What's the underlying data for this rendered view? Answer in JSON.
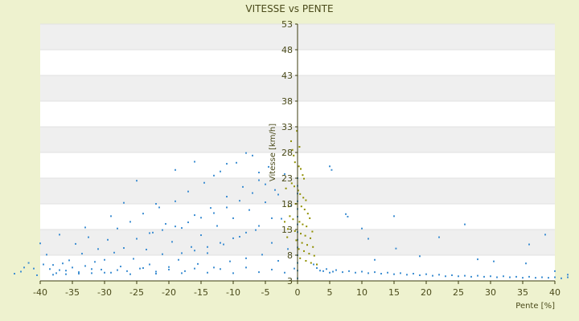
{
  "chart_data": {
    "type": "scatter",
    "title": "VITESSE vs PENTE",
    "xlabel": "Pente [%]",
    "ylabel": "Vitesse [km/h]",
    "xlim": [
      -40,
      40
    ],
    "ylim": [
      3,
      53
    ],
    "x_ticks": [
      -40,
      -35,
      -30,
      -25,
      -20,
      -15,
      -10,
      -5,
      0,
      5,
      10,
      15,
      20,
      25,
      30,
      35,
      40
    ],
    "y_ticks": [
      3,
      8,
      13,
      18,
      23,
      28,
      33,
      38,
      43,
      48,
      53
    ],
    "y_tick_labels": [
      "3",
      "8",
      "13",
      "18",
      "23",
      "28",
      "33",
      "38",
      "43",
      "48",
      "53"
    ],
    "y_axis_position": "x=0",
    "banded_background": true,
    "colors": {
      "background": "#eef2cf",
      "band_light": "#ffffff",
      "band_dark": "#efefef",
      "axis": "#3b3b0e"
    },
    "series": [
      {
        "color": "#3f8fd2",
        "points": [
          [
            -44.0,
            4.4
          ],
          [
            -43.0,
            4.8
          ],
          [
            -42.5,
            5.6
          ],
          [
            -41.8,
            6.5
          ],
          [
            -41.0,
            5.4
          ],
          [
            -40.5,
            4.1
          ],
          [
            -40.0,
            10.3
          ],
          [
            -39.5,
            6.2
          ],
          [
            -39.0,
            8.1
          ],
          [
            -38.5,
            5.3
          ],
          [
            -38.0,
            6.1
          ],
          [
            -37.5,
            4.5
          ],
          [
            -37.0,
            5.1
          ],
          [
            -36.5,
            6.4
          ],
          [
            -36.0,
            4.3
          ],
          [
            -35.5,
            7.0
          ],
          [
            -35.0,
            5.6
          ],
          [
            -34.5,
            10.2
          ],
          [
            -34.0,
            4.7
          ],
          [
            -33.5,
            8.3
          ],
          [
            -33.0,
            5.9
          ],
          [
            -32.5,
            11.5
          ],
          [
            -32.0,
            4.5
          ],
          [
            -31.5,
            6.7
          ],
          [
            -31.0,
            9.2
          ],
          [
            -30.5,
            5.2
          ],
          [
            -30.0,
            7.1
          ],
          [
            -29.5,
            11.0
          ],
          [
            -29.0,
            4.6
          ],
          [
            -28.5,
            8.5
          ],
          [
            -28.0,
            13.2
          ],
          [
            -27.5,
            5.8
          ],
          [
            -27.0,
            9.4
          ],
          [
            -26.5,
            4.9
          ],
          [
            -26.0,
            14.5
          ],
          [
            -25.5,
            7.3
          ],
          [
            -25.0,
            11.2
          ],
          [
            -24.5,
            5.4
          ],
          [
            -24.0,
            16.1
          ],
          [
            -23.5,
            9.1
          ],
          [
            -23.0,
            6.2
          ],
          [
            -22.5,
            12.4
          ],
          [
            -22.0,
            4.8
          ],
          [
            -21.5,
            17.3
          ],
          [
            -21.0,
            8.2
          ],
          [
            -20.5,
            14.1
          ],
          [
            -20.0,
            5.7
          ],
          [
            -19.5,
            10.6
          ],
          [
            -19.0,
            18.5
          ],
          [
            -18.5,
            7.1
          ],
          [
            -18.0,
            13.3
          ],
          [
            -17.5,
            4.9
          ],
          [
            -17.0,
            20.4
          ],
          [
            -16.5,
            9.6
          ],
          [
            -16.0,
            15.8
          ],
          [
            -15.5,
            6.3
          ],
          [
            -15.0,
            11.9
          ],
          [
            -14.5,
            22.1
          ],
          [
            -14.0,
            8.4
          ],
          [
            -13.5,
            17.2
          ],
          [
            -13.0,
            5.6
          ],
          [
            -12.5,
            13.7
          ],
          [
            -12.0,
            24.3
          ],
          [
            -11.5,
            10.1
          ],
          [
            -11.0,
            19.4
          ],
          [
            -10.5,
            6.8
          ],
          [
            -10.0,
            15.2
          ],
          [
            -9.5,
            26.0
          ],
          [
            -9.0,
            11.6
          ],
          [
            -8.5,
            21.3
          ],
          [
            -8.0,
            7.4
          ],
          [
            -7.5,
            16.8
          ],
          [
            -7.0,
            27.4
          ],
          [
            -6.5,
            12.9
          ],
          [
            -6.0,
            22.6
          ],
          [
            -5.5,
            8.1
          ],
          [
            -5.0,
            18.3
          ],
          [
            -4.5,
            25.2
          ],
          [
            -4.0,
            10.4
          ],
          [
            -3.5,
            20.7
          ],
          [
            -3.0,
            6.9
          ],
          [
            -2.5,
            15.1
          ],
          [
            -2.0,
            23.8
          ],
          [
            -1.5,
            9.2
          ],
          [
            -1.0,
            17.6
          ],
          [
            -0.5,
            5.4
          ],
          [
            -38.0,
            4.2
          ],
          [
            -36.0,
            5.0
          ],
          [
            -34.0,
            4.4
          ],
          [
            -32.0,
            5.3
          ],
          [
            -30.0,
            4.6
          ],
          [
            -28.0,
            5.1
          ],
          [
            -26.0,
            4.3
          ],
          [
            -24.0,
            5.5
          ],
          [
            -22.0,
            4.4
          ],
          [
            -20.0,
            5.2
          ],
          [
            -18.0,
            4.5
          ],
          [
            -16.0,
            5.4
          ],
          [
            -14.0,
            4.6
          ],
          [
            -12.0,
            5.3
          ],
          [
            -10.0,
            4.5
          ],
          [
            -8.0,
            5.6
          ],
          [
            -6.0,
            4.7
          ],
          [
            -4.0,
            5.2
          ],
          [
            -2.0,
            4.6
          ],
          [
            -23.0,
            12.3
          ],
          [
            -21.0,
            12.9
          ],
          [
            -19.0,
            13.6
          ],
          [
            -17.0,
            14.4
          ],
          [
            -15.0,
            15.3
          ],
          [
            -13.0,
            16.2
          ],
          [
            -11.0,
            17.3
          ],
          [
            -9.0,
            18.6
          ],
          [
            -7.0,
            20.1
          ],
          [
            -5.0,
            21.8
          ],
          [
            -18.0,
            8.4
          ],
          [
            -16.0,
            8.9
          ],
          [
            -14.0,
            9.6
          ],
          [
            -12.0,
            10.4
          ],
          [
            -10.0,
            11.3
          ],
          [
            -8.0,
            12.4
          ],
          [
            -6.0,
            13.7
          ],
          [
            -4.0,
            15.2
          ],
          [
            -37.0,
            12.0
          ],
          [
            -33.0,
            13.4
          ],
          [
            -29.0,
            15.6
          ],
          [
            -27.0,
            18.2
          ],
          [
            -25.0,
            22.5
          ],
          [
            -22.0,
            18.0
          ],
          [
            -19.0,
            24.6
          ],
          [
            -16.0,
            26.2
          ],
          [
            -13.0,
            23.5
          ],
          [
            -11.0,
            25.8
          ],
          [
            -8.0,
            27.9
          ],
          [
            -6.0,
            24.1
          ],
          [
            -3.0,
            19.8
          ],
          [
            0.0,
            3.5
          ],
          [
            0.0,
            5.0
          ],
          [
            0.0,
            6.5
          ],
          [
            0.0,
            8.0
          ],
          [
            0.0,
            9.5
          ],
          [
            0.0,
            11.0
          ],
          [
            0.0,
            12.5
          ],
          [
            0.0,
            14.0
          ],
          [
            0.0,
            15.5
          ],
          [
            0.0,
            17.0
          ],
          [
            0.0,
            18.5
          ],
          [
            0.0,
            20.0
          ],
          [
            0.0,
            21.5
          ],
          [
            0.0,
            23.0
          ],
          [
            2.5,
            6.2
          ],
          [
            3.0,
            5.5
          ],
          [
            3.5,
            5.0
          ],
          [
            4.0,
            4.9
          ],
          [
            4.5,
            5.3
          ],
          [
            5.0,
            4.6
          ],
          [
            5.5,
            4.8
          ],
          [
            6.0,
            5.1
          ],
          [
            7.0,
            4.7
          ],
          [
            8.0,
            4.9
          ],
          [
            9.0,
            4.6
          ],
          [
            10.0,
            4.8
          ],
          [
            11.0,
            4.5
          ],
          [
            12.0,
            4.7
          ],
          [
            13.0,
            4.4
          ],
          [
            14.0,
            4.6
          ],
          [
            15.0,
            4.3
          ],
          [
            16.0,
            4.5
          ],
          [
            17.0,
            4.2
          ],
          [
            18.0,
            4.4
          ],
          [
            19.0,
            4.1
          ],
          [
            20.0,
            4.3
          ],
          [
            21.0,
            4.0
          ],
          [
            22.0,
            4.2
          ],
          [
            23.0,
            3.9
          ],
          [
            24.0,
            4.1
          ],
          [
            25.0,
            3.9
          ],
          [
            26.0,
            4.0
          ],
          [
            27.0,
            3.8
          ],
          [
            28.0,
            4.0
          ],
          [
            29.0,
            3.8
          ],
          [
            30.0,
            3.9
          ],
          [
            31.0,
            3.7
          ],
          [
            32.0,
            3.9
          ],
          [
            33.0,
            3.7
          ],
          [
            34.0,
            3.8
          ],
          [
            35.0,
            3.6
          ],
          [
            36.0,
            3.8
          ],
          [
            37.0,
            3.6
          ],
          [
            38.0,
            3.7
          ],
          [
            39.0,
            3.6
          ],
          [
            40.0,
            3.7
          ],
          [
            41.0,
            3.5
          ],
          [
            42.0,
            3.7
          ],
          [
            5.0,
            25.3
          ],
          [
            5.3,
            24.6
          ],
          [
            7.5,
            16.0
          ],
          [
            7.8,
            15.5
          ],
          [
            10.0,
            13.2
          ],
          [
            11.0,
            11.2
          ],
          [
            12.0,
            7.1
          ],
          [
            15.0,
            15.6
          ],
          [
            15.3,
            9.3
          ],
          [
            19.0,
            7.8
          ],
          [
            22.0,
            11.5
          ],
          [
            26.0,
            14.0
          ],
          [
            28.0,
            7.2
          ],
          [
            30.5,
            6.8
          ],
          [
            35.5,
            6.4
          ],
          [
            36.0,
            10.1
          ],
          [
            38.5,
            12.0
          ],
          [
            40.0,
            4.9
          ],
          [
            42.0,
            4.2
          ]
        ]
      },
      {
        "color": "#8f8f00",
        "points": [
          [
            -1.0,
            30.2
          ],
          [
            -0.8,
            28.5
          ],
          [
            -0.6,
            27.4
          ],
          [
            -0.4,
            26.1
          ],
          [
            0.2,
            25.3
          ],
          [
            0.5,
            24.8
          ],
          [
            0.8,
            23.6
          ],
          [
            1.0,
            22.9
          ],
          [
            -0.9,
            22.0
          ],
          [
            -0.5,
            21.4
          ],
          [
            0.1,
            20.6
          ],
          [
            0.4,
            19.9
          ],
          [
            0.9,
            19.2
          ],
          [
            1.3,
            18.7
          ],
          [
            -0.3,
            18.0
          ],
          [
            0.6,
            17.5
          ],
          [
            1.1,
            16.9
          ],
          [
            1.6,
            16.1
          ],
          [
            -1.2,
            15.6
          ],
          [
            -0.7,
            15.0
          ],
          [
            0.3,
            14.5
          ],
          [
            0.8,
            14.0
          ],
          [
            1.4,
            13.6
          ],
          [
            -1.5,
            13.1
          ],
          [
            -0.4,
            12.7
          ],
          [
            0.5,
            12.2
          ],
          [
            1.2,
            11.8
          ],
          [
            2.0,
            11.3
          ],
          [
            -0.2,
            10.9
          ],
          [
            0.7,
            10.4
          ],
          [
            1.5,
            10.0
          ],
          [
            2.4,
            9.6
          ],
          [
            0.2,
            9.2
          ],
          [
            1.0,
            8.8
          ],
          [
            1.8,
            8.3
          ],
          [
            2.6,
            7.9
          ],
          [
            0.4,
            7.4
          ],
          [
            1.3,
            6.9
          ],
          [
            2.1,
            6.5
          ],
          [
            3.0,
            6.2
          ],
          [
            -1.8,
            21.0
          ],
          [
            -1.4,
            17.5
          ],
          [
            -2.0,
            14.5
          ],
          [
            -1.6,
            11.5
          ],
          [
            1.9,
            15.2
          ],
          [
            2.3,
            12.6
          ],
          [
            -0.1,
            32.2
          ],
          [
            0.3,
            29.1
          ]
        ]
      }
    ]
  }
}
